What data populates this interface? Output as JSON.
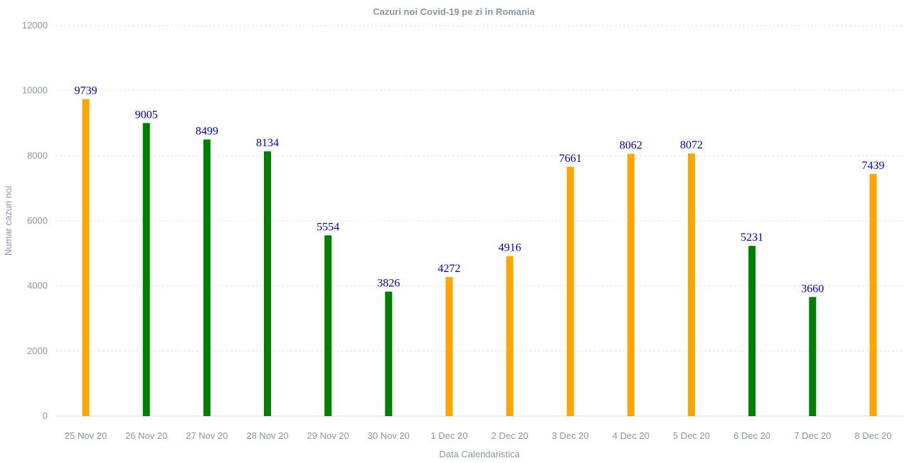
{
  "chart_data": {
    "type": "bar",
    "title": "Cazuri noi Covid-19 pe zi in Romania",
    "xlabel": "Data Calendaristica",
    "ylabel": "Numar cazuri noi",
    "ylim": [
      0,
      12000
    ],
    "yticks": [
      0,
      2000,
      4000,
      6000,
      8000,
      10000,
      12000
    ],
    "grid": true,
    "categories": [
      "25 Nov 20",
      "26 Nov 20",
      "27 Nov 20",
      "28 Nov 20",
      "29 Nov 20",
      "30 Nov 20",
      "1 Dec 20",
      "2 Dec 20",
      "3 Dec 20",
      "4 Dec 20",
      "5 Dec 20",
      "6 Dec 20",
      "7 Dec 20",
      "8 Dec 20"
    ],
    "values": [
      9739,
      9005,
      8499,
      8134,
      5554,
      3826,
      4272,
      4916,
      7661,
      8062,
      8072,
      5231,
      3660,
      7439
    ],
    "bar_colors": [
      "#FFA500",
      "#008000",
      "#008000",
      "#008000",
      "#008000",
      "#008000",
      "#FFA500",
      "#FFA500",
      "#FFA500",
      "#FFA500",
      "#FFA500",
      "#008000",
      "#008000",
      "#FFA500"
    ],
    "data_label_color": "#0000CC"
  }
}
